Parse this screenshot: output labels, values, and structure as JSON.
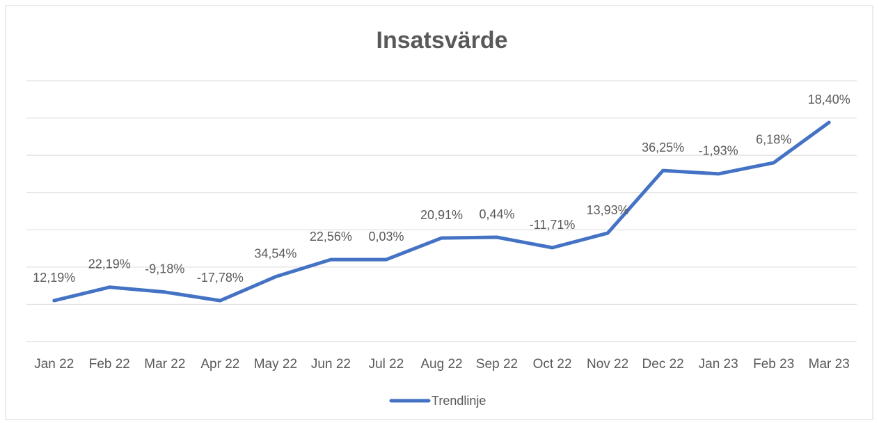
{
  "chart_data": {
    "type": "line",
    "title": "Insatsvärde",
    "categories": [
      "Jan 22",
      "Feb 22",
      "Mar 22",
      "Apr 22",
      "May 22",
      "Jun 22",
      "Jul  22",
      "Aug 22",
      "Sep 22",
      "Oct 22",
      "Nov 22",
      "Dec 22",
      "Jan 23",
      "Feb 23",
      "Mar 23"
    ],
    "series": [
      {
        "name": "Trendlinje",
        "color": "#4472c4",
        "values": [
          1.1,
          1.46,
          1.33,
          1.1,
          1.74,
          2.2,
          2.2,
          2.78,
          2.8,
          2.52,
          2.91,
          4.59,
          4.5,
          4.8,
          5.88
        ]
      }
    ],
    "data_labels": [
      "12,19%",
      "22,19%",
      "-9,18%",
      "-17,78%",
      "34,54%",
      "22,56%",
      "0,03%",
      "20,91%",
      "0,44%",
      "-11,71%",
      "13,93%",
      "36,25%",
      "-1,93%",
      "6,18%",
      "18,40%"
    ],
    "ylim": [
      0,
      7
    ],
    "yticks": [
      0,
      1,
      2,
      3,
      4,
      5,
      6,
      7
    ],
    "grid": true,
    "legend": "bottom"
  }
}
